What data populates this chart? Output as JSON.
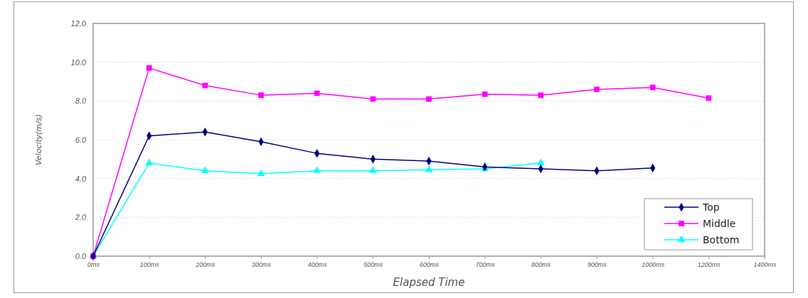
{
  "chart_data": {
    "type": "line",
    "xlabel": "Elapsed Time",
    "ylabel": "Velocity(m/s)",
    "categories": [
      "0ms",
      "100ms",
      "200ms",
      "300ms",
      "400ms",
      "500ms",
      "600ms",
      "700ms",
      "800ms",
      "900ms",
      "1000ms",
      "1200ms",
      "1400ms"
    ],
    "ylim": [
      0,
      12
    ],
    "yticks": [
      {
        "value": 0,
        "label": "0.0"
      },
      {
        "value": 2,
        "label": "2.0"
      },
      {
        "value": 4,
        "label": "4.0"
      },
      {
        "value": 6,
        "label": "6.0"
      },
      {
        "value": 8,
        "label": "8.0"
      },
      {
        "value": 10,
        "label": "10.0"
      },
      {
        "value": 12,
        "label": "12.0"
      }
    ],
    "grid": "y",
    "legend": "bottom right",
    "series": [
      {
        "name": "Top",
        "color": "#000080",
        "marker": "diamond",
        "values": [
          0,
          6.2,
          6.4,
          5.9,
          5.3,
          5.0,
          4.9,
          4.6,
          4.5,
          4.4,
          4.55,
          null,
          null
        ]
      },
      {
        "name": "Middle",
        "color": "#ff00ff",
        "marker": "square",
        "values": [
          0,
          9.7,
          8.8,
          8.3,
          8.4,
          8.1,
          8.1,
          8.35,
          8.3,
          8.6,
          8.7,
          8.15,
          null
        ]
      },
      {
        "name": "Bottom",
        "color": "#00ffff",
        "marker": "triangle",
        "values": [
          0,
          4.8,
          4.4,
          4.25,
          4.4,
          4.4,
          4.45,
          4.5,
          4.8,
          null,
          null,
          null,
          null
        ]
      }
    ]
  }
}
